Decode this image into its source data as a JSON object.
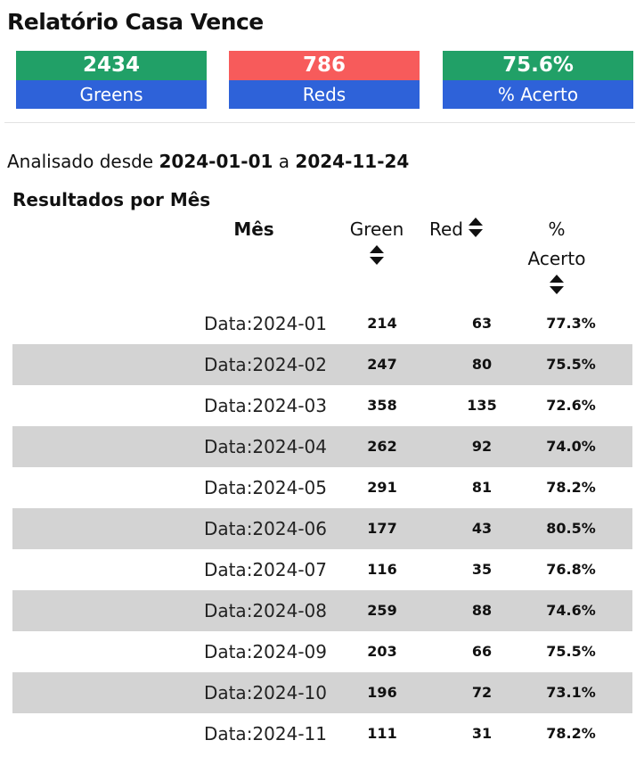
{
  "page": {
    "title": "Relatório Casa Vence"
  },
  "colors": {
    "green": "#21a067",
    "red": "#f75b5b",
    "blue": "#2e62d9",
    "row_alt": "#d3d3d3"
  },
  "stats": [
    {
      "value": "2434",
      "label": "Greens",
      "color": "#21a067"
    },
    {
      "value": "786",
      "label": "Reds",
      "color": "#f75b5b"
    },
    {
      "value": "75.6%",
      "label": "% Acerto",
      "color": "#21a067"
    }
  ],
  "range": {
    "prefix": "Analisado desde",
    "start": "2024-01-01",
    "joiner": "a",
    "end": "2024-11-24"
  },
  "table": {
    "title": "Resultados por Mês",
    "headers": {
      "month": "Mês",
      "green": "Green",
      "red": "Red",
      "pct_line1": "%",
      "pct_line2": "Acerto"
    },
    "rows": [
      {
        "month": "Data:2024-01",
        "green": "214",
        "red": "63",
        "pct": "77.3%"
      },
      {
        "month": "Data:2024-02",
        "green": "247",
        "red": "80",
        "pct": "75.5%"
      },
      {
        "month": "Data:2024-03",
        "green": "358",
        "red": "135",
        "pct": "72.6%"
      },
      {
        "month": "Data:2024-04",
        "green": "262",
        "red": "92",
        "pct": "74.0%"
      },
      {
        "month": "Data:2024-05",
        "green": "291",
        "red": "81",
        "pct": "78.2%"
      },
      {
        "month": "Data:2024-06",
        "green": "177",
        "red": "43",
        "pct": "80.5%"
      },
      {
        "month": "Data:2024-07",
        "green": "116",
        "red": "35",
        "pct": "76.8%"
      },
      {
        "month": "Data:2024-08",
        "green": "259",
        "red": "88",
        "pct": "74.6%"
      },
      {
        "month": "Data:2024-09",
        "green": "203",
        "red": "66",
        "pct": "75.5%"
      },
      {
        "month": "Data:2024-10",
        "green": "196",
        "red": "72",
        "pct": "73.1%"
      },
      {
        "month": "Data:2024-11",
        "green": "111",
        "red": "31",
        "pct": "78.2%"
      }
    ]
  }
}
